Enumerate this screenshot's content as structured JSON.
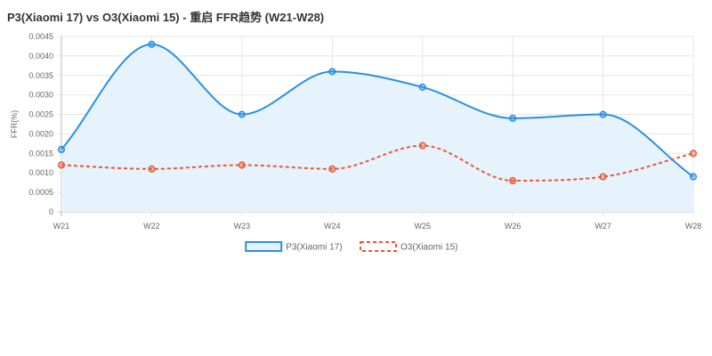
{
  "chart_data": {
    "type": "line",
    "title": "P3(Xiaomi 17) vs O3(Xiaomi 15) - 重启 FFR趋势 (W21-W28)",
    "xlabel": "",
    "ylabel": "FFR(%)",
    "categories": [
      "W21",
      "W22",
      "W23",
      "W24",
      "W25",
      "W26",
      "W27",
      "W28"
    ],
    "ylim": [
      0,
      0.0045
    ],
    "yticks": [
      "0",
      "0.0005",
      "0.0010",
      "0.0015",
      "0.0020",
      "0.0025",
      "0.0030",
      "0.0035",
      "0.0040",
      "0.0045"
    ],
    "grid": true,
    "legend_position": "bottom-center",
    "series": [
      {
        "name": "P3(Xiaomi 17)",
        "values": [
          0.0016,
          0.0043,
          0.0025,
          0.0036,
          0.0032,
          0.0024,
          0.0025,
          0.0009
        ],
        "color": "#2a8fe3",
        "fill": "#e6f3fc",
        "dashed": false,
        "area": true
      },
      {
        "name": "O3(Xiaomi 15)",
        "values": [
          0.0012,
          0.0011,
          0.0012,
          0.0011,
          0.0017,
          0.0008,
          0.0009,
          0.0015
        ],
        "color": "#e8583a",
        "fill": "none",
        "dashed": true,
        "area": false
      }
    ]
  }
}
